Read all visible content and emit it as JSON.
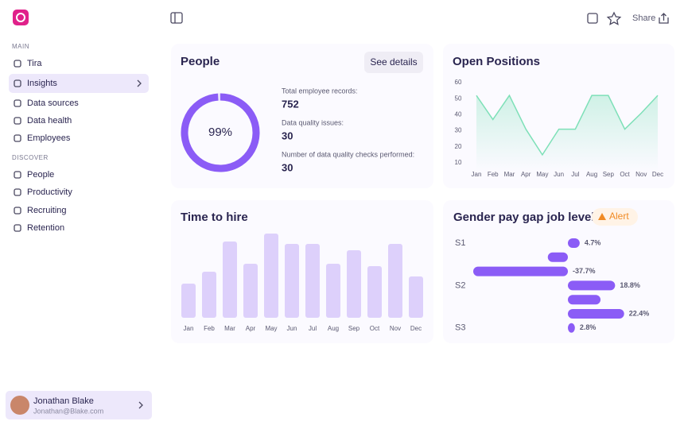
{
  "sidebar": {
    "sections": [
      {
        "label": "MAIN",
        "items": [
          "Tira",
          "Insights",
          "Data sources",
          "Data health",
          "Employees"
        ]
      },
      {
        "label": "DISCOVER",
        "items": [
          "People",
          "Productivity",
          "Recruiting",
          "Retention"
        ]
      }
    ],
    "user": {
      "name": "Jonathan Blake",
      "email": "Jonathan@Blake.com"
    }
  },
  "topbar": {
    "share": "Share"
  },
  "chart_data": [
    {
      "type": "donut",
      "title": "People",
      "button": "See details",
      "values": [
        99
      ],
      "value_labels": [
        "99%"
      ],
      "color": "#8b5cf6",
      "stats": [
        {
          "label": "Total employee records:",
          "value": 752
        },
        {
          "label": "Data quality issues:",
          "value": 30
        },
        {
          "label": "Number of data quality checks performed:",
          "value": 30
        }
      ]
    },
    {
      "type": "line",
      "title": "Open Positions",
      "categories": [
        "Jan",
        "Feb",
        "Mar",
        "Apr",
        "May",
        "Jun",
        "Jul",
        "Aug",
        "Sep",
        "Oct",
        "Nov",
        "Dec"
      ],
      "values": [
        52,
        37,
        52,
        31,
        15,
        31,
        31,
        52,
        52,
        31,
        41,
        52
      ],
      "color": "#7ee0b8",
      "ylim": [
        5,
        60
      ],
      "yticks": [
        10,
        20,
        30,
        40,
        50,
        60
      ]
    },
    {
      "type": "bar",
      "title": "Time to hire",
      "categories": [
        "Jan",
        "Feb",
        "Mar",
        "Apr",
        "May",
        "Jun",
        "Jul",
        "Aug",
        "Sep",
        "Oct",
        "Nov",
        "Dec"
      ],
      "values": [
        43,
        58,
        96,
        68,
        106,
        93,
        93,
        68,
        85,
        65,
        93,
        52
      ],
      "color": "#ddd0fb"
    },
    {
      "type": "hbar",
      "title": "Gender pay gap job level",
      "badge": "Alert",
      "categories": [
        "S1",
        null,
        null,
        "S2",
        null,
        null,
        "S3"
      ],
      "values": [
        4.7,
        -8,
        -37.7,
        18.8,
        13,
        22.4,
        2.8
      ],
      "value_labels": [
        "4.7%",
        null,
        "-37.7%",
        "18.8%",
        null,
        "22.4%",
        "2.8%"
      ],
      "color": "#8b5cf6"
    }
  ]
}
